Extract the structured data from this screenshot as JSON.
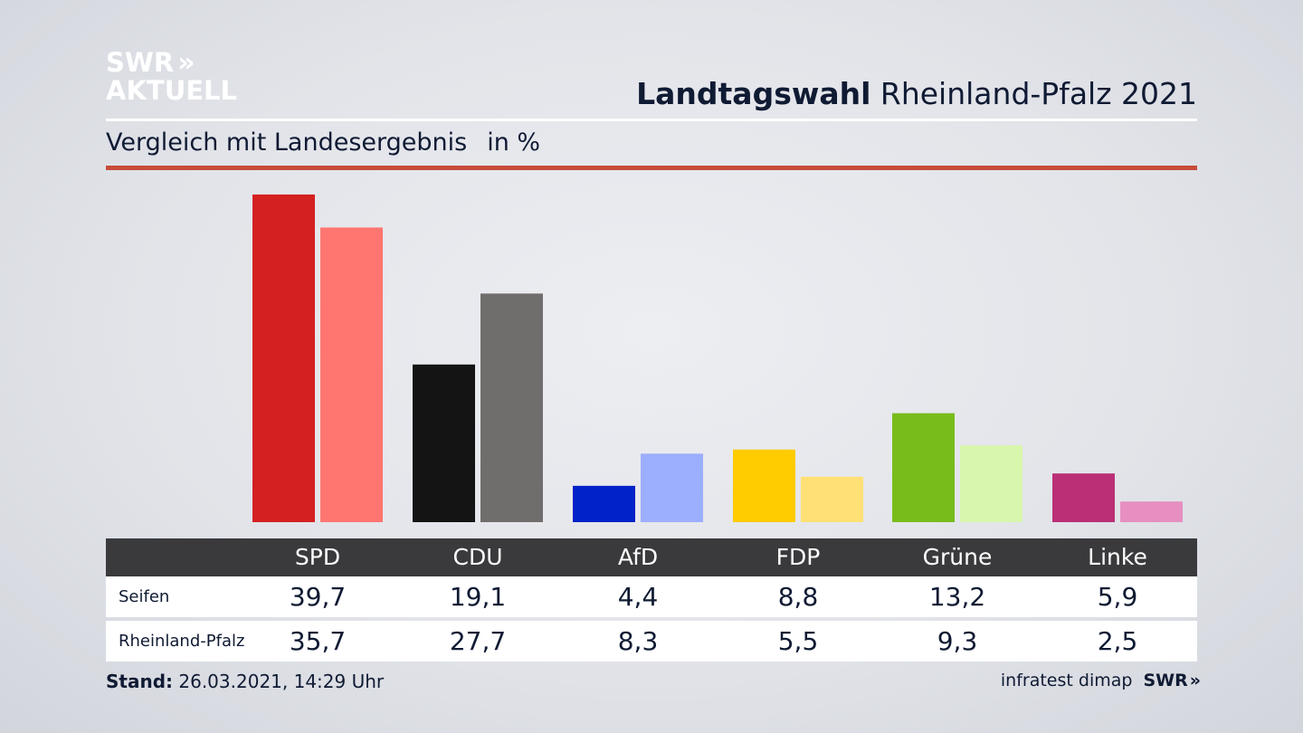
{
  "logo": {
    "line1": "SWR",
    "line2": "AKTUELL",
    "chevron": "»"
  },
  "header": {
    "title_bold": "Landtagswahl",
    "title_rest": "Rheinland-Pfalz 2021"
  },
  "subtitle": {
    "text": "Vergleich mit Landesergebnis",
    "unit": "in %"
  },
  "colors": {
    "accent_rule": "#c84b3a",
    "table_header_bg": "#3a3a3c",
    "text": "#0f1a33"
  },
  "chart_data": {
    "type": "bar",
    "categories": [
      "SPD",
      "CDU",
      "AfD",
      "FDP",
      "Grüne",
      "Linke"
    ],
    "series": [
      {
        "name": "Seifen",
        "values": [
          39.7,
          19.1,
          4.4,
          8.8,
          13.2,
          5.9
        ],
        "colors": [
          "#d42020",
          "#141414",
          "#0022c8",
          "#ffcc00",
          "#78bc1c",
          "#bb2f76"
        ]
      },
      {
        "name": "Rheinland-Pfalz",
        "values": [
          35.7,
          27.7,
          8.3,
          5.5,
          9.3,
          2.5
        ],
        "colors": [
          "#ff7570",
          "#706e6c",
          "#9caefe",
          "#ffe074",
          "#d8f6ac",
          "#e68fc0"
        ]
      }
    ],
    "title": "Vergleich mit Landesergebnis",
    "ylabel": "in %",
    "ylim": [
      0,
      40
    ],
    "grid": false
  },
  "table": {
    "columns": [
      "SPD",
      "CDU",
      "AfD",
      "FDP",
      "Grüne",
      "Linke"
    ],
    "rows": [
      {
        "label": "Seifen",
        "values": [
          "39,7",
          "19,1",
          "4,4",
          "8,8",
          "13,2",
          "5,9"
        ]
      },
      {
        "label": "Rheinland-Pfalz",
        "values": [
          "35,7",
          "27,7",
          "8,3",
          "5,5",
          "9,3",
          "2,5"
        ]
      }
    ]
  },
  "footer": {
    "stand_label": "Stand:",
    "stand_value": "26.03.2021, 14:29 Uhr",
    "source": "infratest dimap",
    "brand": "SWR",
    "brand_chevron": "»"
  }
}
